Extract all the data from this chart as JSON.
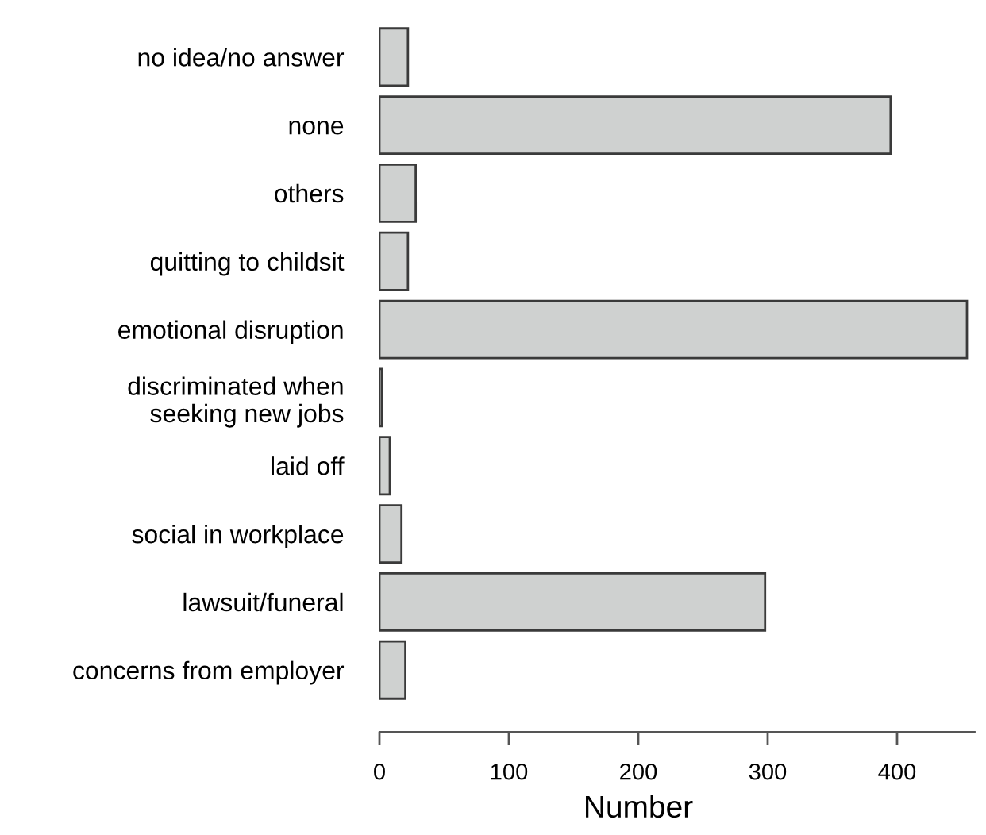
{
  "chart_data": {
    "type": "bar",
    "orientation": "horizontal",
    "xlabel": "Number",
    "categories": [
      "no idea/no answer",
      "none",
      "others",
      "quitting to childsit",
      "emotional disruption",
      "discriminated when\nseeking new jobs",
      "laid off",
      "social in workplace",
      "lawsuit/funeral",
      "concerns from employer"
    ],
    "values": [
      22,
      395,
      28,
      22,
      454,
      2,
      8,
      17,
      298,
      20
    ],
    "color": "#cfd1d0",
    "xlim": [
      0,
      460
    ],
    "xticks": [
      0,
      100,
      200,
      300,
      400
    ],
    "grid": false
  }
}
